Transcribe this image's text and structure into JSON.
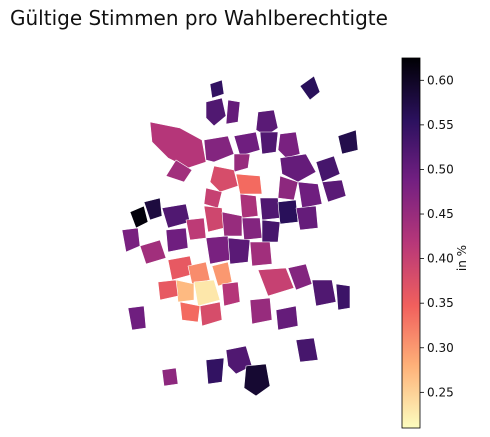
{
  "title": "Gültige Stimmen pro Wahlberechtigte",
  "colorbar": {
    "label": "in %",
    "min": 0.21,
    "max": 0.625,
    "ticks": [
      0.25,
      0.3,
      0.35,
      0.4,
      0.45,
      0.5,
      0.55,
      0.6
    ],
    "tick_labels": [
      "0.25",
      "0.30",
      "0.35",
      "0.40",
      "0.45",
      "0.50",
      "0.55",
      "0.60"
    ],
    "colormap": "magma_r",
    "stops": [
      "#fcfdbf",
      "#feb078",
      "#f1605d",
      "#b73779",
      "#721f81",
      "#2c115f",
      "#000004"
    ]
  },
  "map": {
    "type": "choropleth",
    "districts": [
      {
        "id": "d01",
        "value": 0.42
      },
      {
        "id": "d02",
        "value": 0.52
      },
      {
        "id": "d03",
        "value": 0.5
      },
      {
        "id": "d04",
        "value": 0.55
      },
      {
        "id": "d05",
        "value": 0.51
      },
      {
        "id": "d06",
        "value": 0.47
      },
      {
        "id": "d07",
        "value": 0.49
      },
      {
        "id": "d08",
        "value": 0.52
      },
      {
        "id": "d09",
        "value": 0.56
      },
      {
        "id": "d10",
        "value": 0.45
      },
      {
        "id": "d11",
        "value": 0.44
      },
      {
        "id": "d12",
        "value": 0.48
      },
      {
        "id": "d13",
        "value": 0.38
      },
      {
        "id": "d14",
        "value": 0.34
      },
      {
        "id": "d15",
        "value": 0.4
      },
      {
        "id": "d16",
        "value": 0.43
      },
      {
        "id": "d17",
        "value": 0.5
      },
      {
        "id": "d18",
        "value": 0.53
      },
      {
        "id": "d19",
        "value": 0.57
      },
      {
        "id": "d20",
        "value": 0.51
      },
      {
        "id": "d21",
        "value": 0.49
      },
      {
        "id": "d22",
        "value": 0.46
      },
      {
        "id": "d23",
        "value": 0.62
      },
      {
        "id": "d24",
        "value": 0.58
      },
      {
        "id": "d25",
        "value": 0.48
      },
      {
        "id": "d26",
        "value": 0.52
      },
      {
        "id": "d27",
        "value": 0.41
      },
      {
        "id": "d28",
        "value": 0.39
      },
      {
        "id": "d29",
        "value": 0.45
      },
      {
        "id": "d30",
        "value": 0.47
      },
      {
        "id": "d31",
        "value": 0.52
      },
      {
        "id": "d32",
        "value": 0.56
      },
      {
        "id": "d33",
        "value": 0.5
      },
      {
        "id": "d34",
        "value": 0.44
      },
      {
        "id": "d35",
        "value": 0.49
      },
      {
        "id": "d36",
        "value": 0.53
      },
      {
        "id": "d37",
        "value": 0.36
      },
      {
        "id": "d38",
        "value": 0.31
      },
      {
        "id": "d39",
        "value": 0.27
      },
      {
        "id": "d40",
        "value": 0.23
      },
      {
        "id": "d41",
        "value": 0.3
      },
      {
        "id": "d42",
        "value": 0.34
      },
      {
        "id": "d43",
        "value": 0.38
      },
      {
        "id": "d44",
        "value": 0.42
      },
      {
        "id": "d45",
        "value": 0.36
      },
      {
        "id": "d46",
        "value": 0.48
      },
      {
        "id": "d47",
        "value": 0.51
      },
      {
        "id": "d48",
        "value": 0.44
      },
      {
        "id": "d49",
        "value": 0.4
      },
      {
        "id": "d50",
        "value": 0.47
      },
      {
        "id": "d51",
        "value": 0.52
      },
      {
        "id": "d52",
        "value": 0.54
      },
      {
        "id": "d53",
        "value": 0.5
      },
      {
        "id": "d54",
        "value": 0.45
      },
      {
        "id": "d55",
        "value": 0.49
      },
      {
        "id": "d56",
        "value": 0.52
      },
      {
        "id": "d57",
        "value": 0.59
      },
      {
        "id": "d58",
        "value": 0.55
      },
      {
        "id": "d59",
        "value": 0.53
      },
      {
        "id": "d60",
        "value": 0.46
      }
    ]
  }
}
